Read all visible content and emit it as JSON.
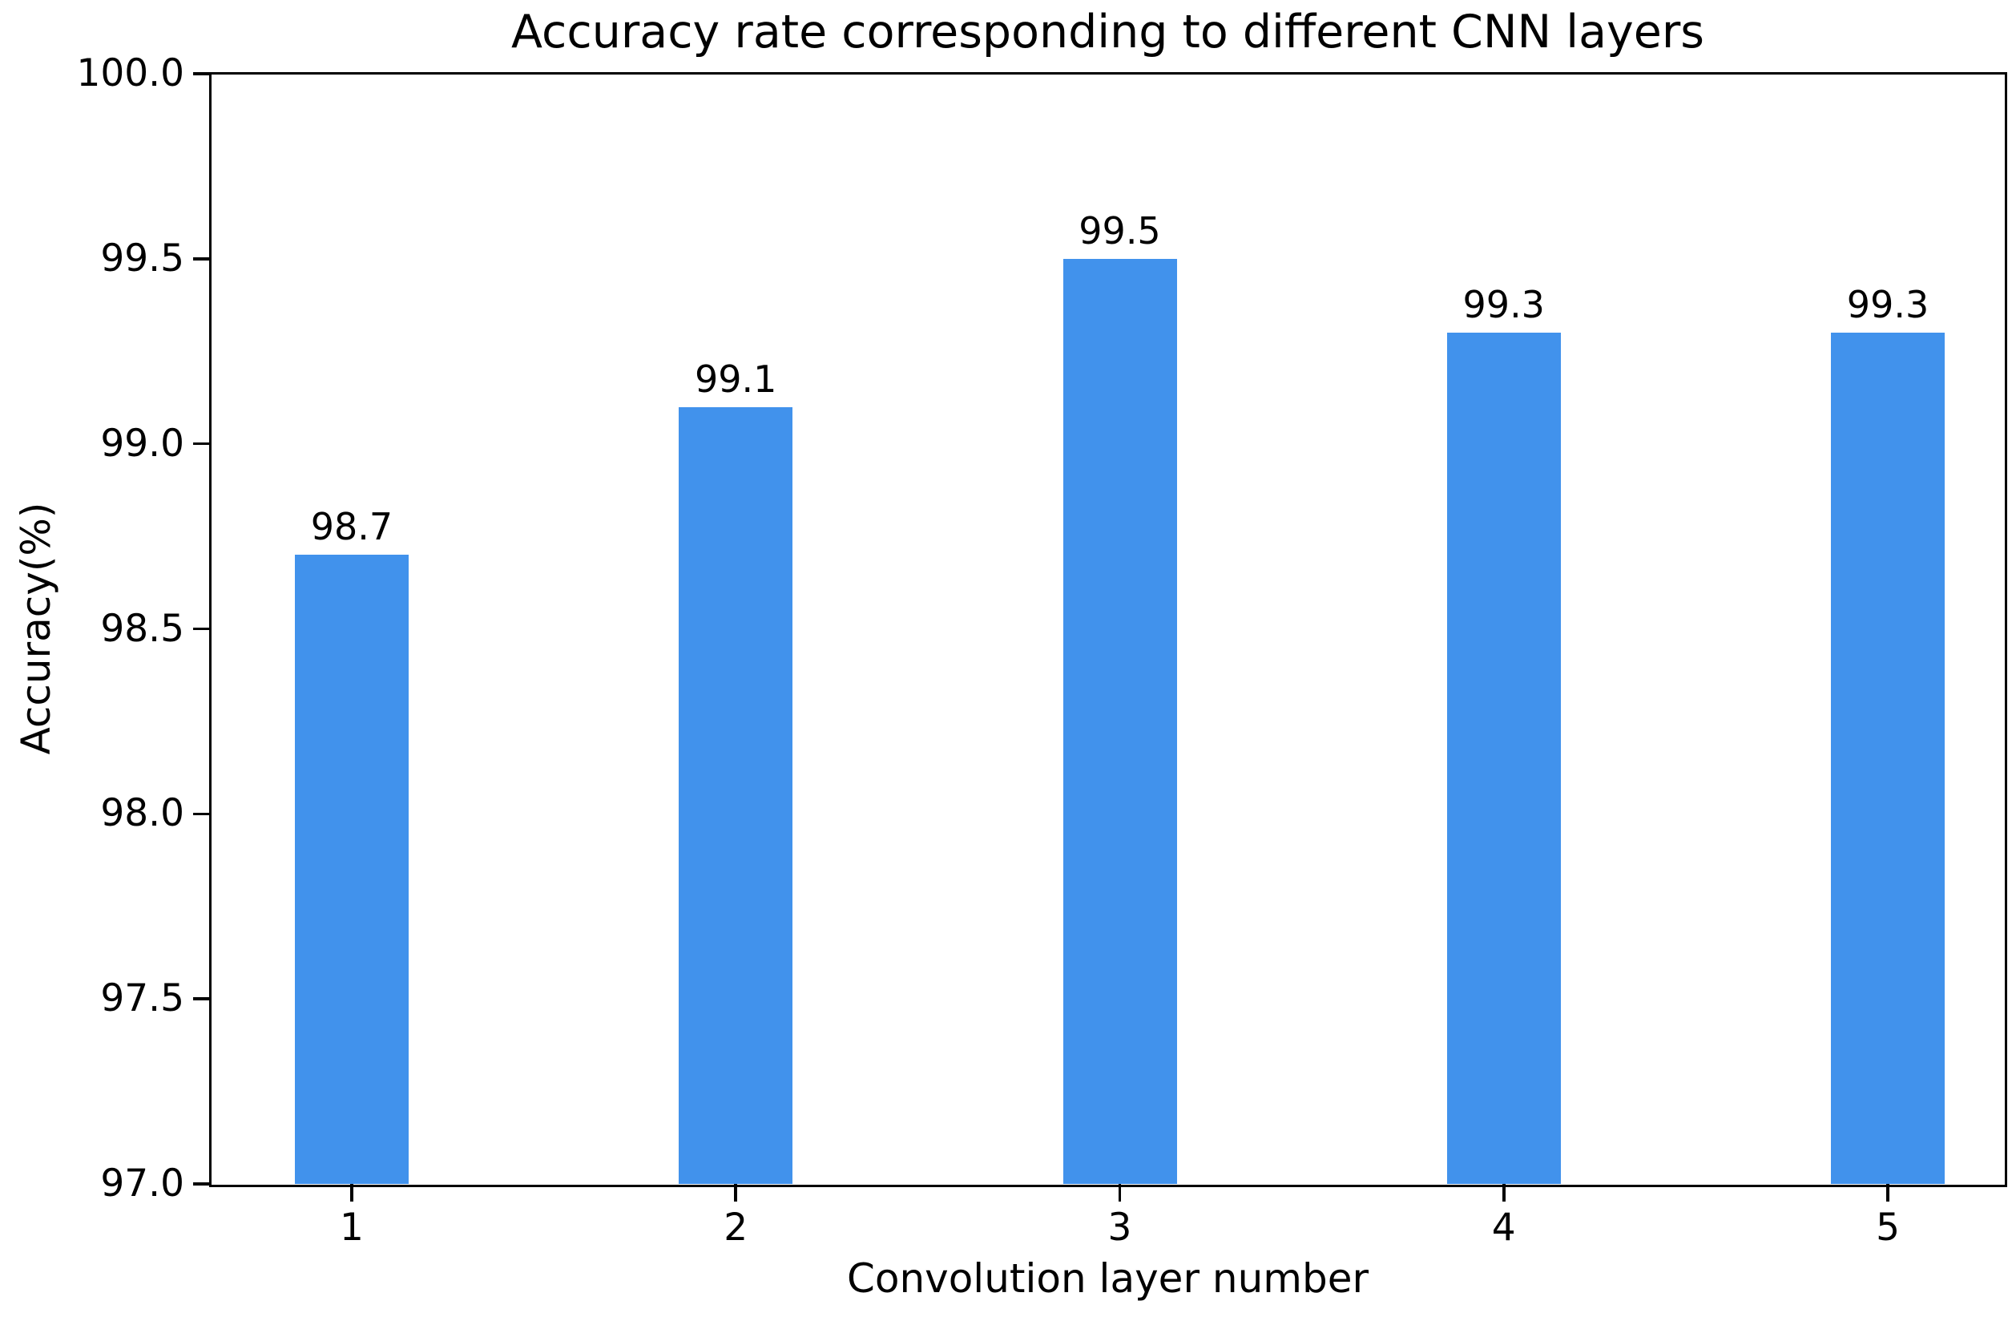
{
  "chart_data": {
    "type": "bar",
    "title": "Accuracy rate corresponding to different CNN layers",
    "xlabel": "Convolution layer number",
    "ylabel": "Accuracy(%)",
    "categories": [
      "1",
      "2",
      "3",
      "4",
      "5"
    ],
    "values": [
      98.7,
      99.1,
      99.5,
      99.3,
      99.3
    ],
    "bar_labels": [
      "98.7",
      "99.1",
      "99.5",
      "99.3",
      "99.3"
    ],
    "ylim": [
      97.0,
      100.0
    ],
    "yticks": [
      97.0,
      97.5,
      98.0,
      98.5,
      99.0,
      99.5,
      100.0
    ],
    "ytick_labels": [
      "97.0",
      "97.5",
      "98.0",
      "98.5",
      "99.0",
      "99.5",
      "100.0"
    ],
    "grid": false,
    "legend": null,
    "colors": {
      "bar": "#4192EC",
      "axis": "#000000",
      "text": "#000000",
      "background": "#ffffff"
    }
  }
}
